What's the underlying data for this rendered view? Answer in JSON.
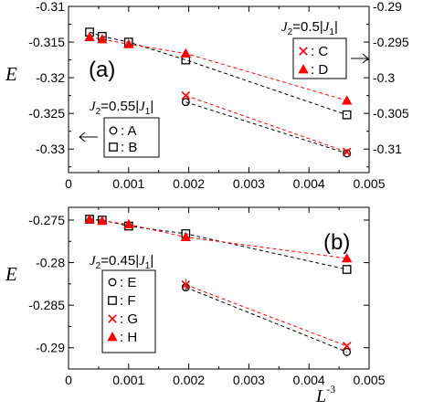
{
  "chart_data": [
    {
      "type": "scatter",
      "panel_label": "(a)",
      "xlabel": "",
      "ylabel": "E",
      "xlim": [
        0,
        0.005
      ],
      "ylim_left": [
        -0.3333,
        -0.31
      ],
      "ylim_right": [
        -0.3133,
        -0.29
      ],
      "xticks": [
        "0",
        "0.001",
        "0.002",
        "0.003",
        "0.004",
        "0.005"
      ],
      "yticks_left": [
        "-0.31",
        "-0.315",
        "-0.32",
        "-0.325",
        "-0.33"
      ],
      "yticks_right": [
        "-0.29",
        "-0.295",
        "-0.3",
        "-0.305",
        "-0.31"
      ],
      "legends": [
        {
          "title": "J2=0.55|J1|",
          "position": "lower-left",
          "arrow": "left",
          "entries": [
            {
              "marker": "circle",
              "label": ": A"
            },
            {
              "marker": "square",
              "label": ": B"
            }
          ]
        },
        {
          "title": "J2=0.5|J1|",
          "position": "upper-right",
          "arrow": "right",
          "entries": [
            {
              "marker": "cross",
              "label": ": C"
            },
            {
              "marker": "triangle",
              "label": ": D"
            }
          ]
        }
      ],
      "series": [
        {
          "label": ": A",
          "marker": "circle",
          "color": "#000000",
          "linestyle": "dashed",
          "axis": "left",
          "x": [
            0.00195,
            0.00463
          ],
          "y": [
            -0.3234,
            -0.3306
          ]
        },
        {
          "label": ": B",
          "marker": "square",
          "color": "#000000",
          "linestyle": "dashed",
          "axis": "left",
          "x": [
            0.00035,
            0.00056,
            0.001,
            0.00195,
            0.00463
          ],
          "y": [
            -0.3136,
            -0.3142,
            -0.315,
            -0.3175,
            -0.3252
          ]
        },
        {
          "label": ": C",
          "marker": "cross",
          "color": "#ff0000",
          "linestyle": "dashed",
          "axis": "right",
          "x": [
            0.00195,
            0.00463
          ],
          "y": [
            -0.3025,
            -0.3104
          ]
        },
        {
          "label": ": D",
          "marker": "triangle",
          "color": "#ff0000",
          "linestyle": "dashed",
          "axis": "right",
          "x": [
            0.00035,
            0.00056,
            0.001,
            0.00195,
            0.00463
          ],
          "y": [
            -0.2943,
            -0.2946,
            -0.2953,
            -0.2966,
            -0.3032
          ]
        }
      ]
    },
    {
      "type": "scatter",
      "panel_label": "(b)",
      "xlabel": "L-3",
      "ylabel": "E",
      "xlim": [
        0,
        0.005
      ],
      "ylim": [
        -0.2925,
        -0.2735
      ],
      "xticks": [
        "0",
        "0.001",
        "0.002",
        "0.003",
        "0.004",
        "0.005"
      ],
      "yticks": [
        "-0.275",
        "-0.28",
        "-0.285",
        "-0.29"
      ],
      "legends": [
        {
          "title": "J2=0.45|J1|",
          "position": "left",
          "entries": [
            {
              "marker": "circle",
              "label": ": E"
            },
            {
              "marker": "square",
              "label": ": F"
            },
            {
              "marker": "cross",
              "label": ": G"
            },
            {
              "marker": "triangle",
              "label": ": H"
            }
          ]
        }
      ],
      "series": [
        {
          "label": ": E",
          "marker": "circle",
          "color": "#000000",
          "linestyle": "dashed",
          "x": [
            0.00195,
            0.00463
          ],
          "y": [
            -0.2829,
            -0.2905
          ]
        },
        {
          "label": ": F",
          "marker": "square",
          "color": "#000000",
          "linestyle": "dashed",
          "x": [
            0.00035,
            0.00056,
            0.001,
            0.00195,
            0.00463
          ],
          "y": [
            -0.2749,
            -0.275,
            -0.2757,
            -0.2766,
            -0.2808
          ]
        },
        {
          "label": ": G",
          "marker": "cross",
          "color": "#ff0000",
          "linestyle": "dashed",
          "x": [
            0.00195,
            0.00463
          ],
          "y": [
            -0.2826,
            -0.2898
          ]
        },
        {
          "label": ": H",
          "marker": "triangle",
          "color": "#ff0000",
          "linestyle": "dashed",
          "x": [
            0.00035,
            0.00056,
            0.001,
            0.00195,
            0.00463
          ],
          "y": [
            -0.2749,
            -0.2751,
            -0.2755,
            -0.277,
            -0.2795
          ]
        }
      ]
    }
  ]
}
